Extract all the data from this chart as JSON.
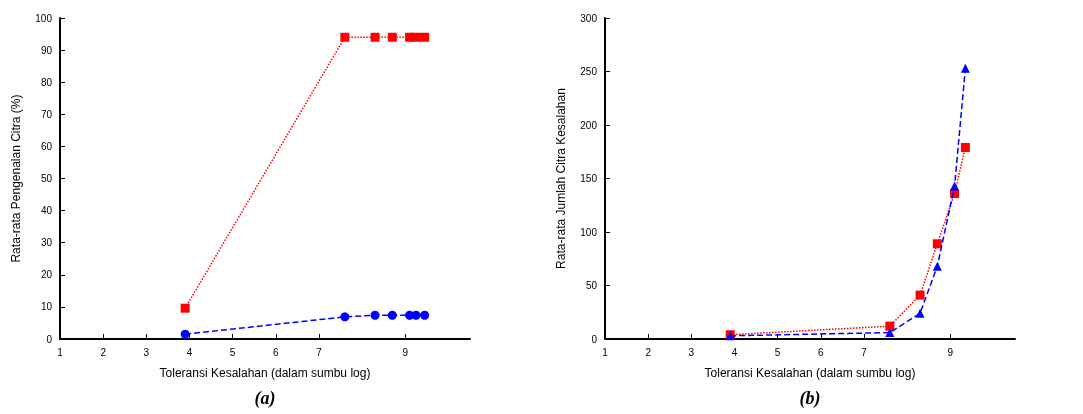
{
  "chart_data": [
    {
      "type": "line",
      "title": "(a)",
      "xlabel": "Toleransi Kesalahan (dalam sumbu log)",
      "ylabel": "Rata-rata Pengenalan Citra (%)",
      "xlim": [
        1,
        10.5
      ],
      "xticks": [
        1,
        2,
        3,
        4,
        5,
        6,
        7,
        9
      ],
      "ylim": [
        0,
        100
      ],
      "yticks": [
        0,
        10,
        20,
        30,
        40,
        50,
        60,
        70,
        80,
        90,
        100
      ],
      "series": [
        {
          "color": "#0000ff",
          "marker": "circle",
          "line_style": "dashed",
          "x": [
            3.9,
            7.6,
            8.3,
            8.7,
            9.1,
            9.25,
            9.45
          ],
          "values": [
            1.5,
            6.9,
            7.4,
            7.4,
            7.4,
            7.4,
            7.4
          ]
        },
        {
          "color": "#ff0000",
          "marker": "square",
          "line_style": "dotted",
          "x": [
            3.9,
            7.6,
            8.3,
            8.7,
            9.1,
            9.25,
            9.45
          ],
          "values": [
            9.6,
            94,
            94,
            94,
            94,
            94,
            94
          ]
        }
      ]
    },
    {
      "type": "line",
      "title": "(b)",
      "xlabel": "Toleransi Kesalahan (dalam sumbu log)",
      "ylabel": "Rata-rata Jumlah Citra Kesalahan",
      "xlim": [
        1,
        10.5
      ],
      "xticks": [
        1,
        2,
        3,
        4,
        5,
        6,
        7,
        9
      ],
      "ylim": [
        0,
        300
      ],
      "yticks": [
        0,
        50,
        100,
        150,
        200,
        250,
        300
      ],
      "series": [
        {
          "color": "#0000ff",
          "marker": "triangle",
          "line_style": "dashed",
          "x": [
            3.9,
            7.6,
            8.3,
            8.7,
            9.1,
            9.35
          ],
          "values": [
            3,
            6,
            24,
            68,
            143,
            253
          ]
        },
        {
          "color": "#ff0000",
          "marker": "square",
          "line_style": "dotted",
          "x": [
            3.9,
            7.6,
            8.3,
            8.7,
            9.1,
            9.35
          ],
          "values": [
            4,
            12,
            41,
            89,
            136,
            179
          ]
        }
      ]
    }
  ]
}
